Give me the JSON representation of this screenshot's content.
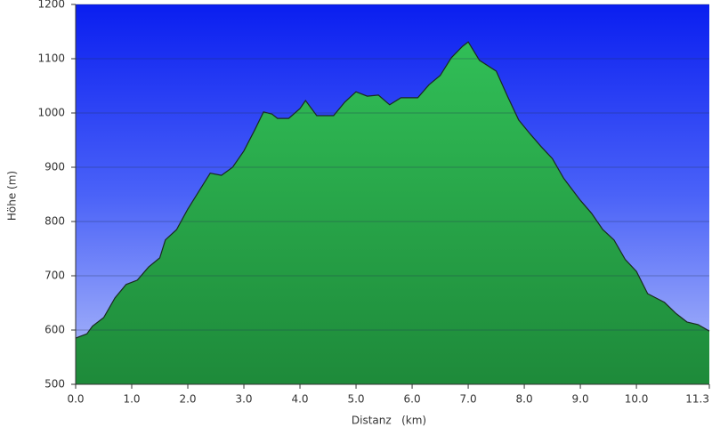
{
  "chart_data": {
    "type": "area",
    "xlabel": "Distanz   (km)",
    "ylabel": "Höhe (m)",
    "x": [
      0,
      0.2,
      0.3,
      0.5,
      0.7,
      0.9,
      1.1,
      1.3,
      1.5,
      1.6,
      1.8,
      2.0,
      2.2,
      2.4,
      2.6,
      2.8,
      3.0,
      3.2,
      3.35,
      3.5,
      3.6,
      3.8,
      4.0,
      4.1,
      4.3,
      4.6,
      4.8,
      5.0,
      5.2,
      5.4,
      5.6,
      5.8,
      6.1,
      6.3,
      6.5,
      6.7,
      6.9,
      7.0,
      7.2,
      7.5,
      7.7,
      7.9,
      8.1,
      8.3,
      8.5,
      8.7,
      9.0,
      9.2,
      9.4,
      9.6,
      9.8,
      10.0,
      10.2,
      10.5,
      10.7,
      10.9,
      11.1,
      11.3
    ],
    "values": [
      585,
      593,
      607,
      623,
      659,
      684,
      692,
      716,
      733,
      766,
      785,
      823,
      856,
      889,
      885,
      900,
      930,
      970,
      1002,
      998,
      990,
      990,
      1008,
      1023,
      995,
      995,
      1020,
      1039,
      1031,
      1033,
      1015,
      1028,
      1028,
      1052,
      1069,
      1102,
      1123,
      1131,
      1097,
      1077,
      1031,
      987,
      962,
      938,
      916,
      880,
      839,
      815,
      785,
      766,
      730,
      708,
      667,
      651,
      631,
      615,
      610,
      598
    ],
    "color": "#22aa44",
    "xlim": [
      0,
      11.3
    ],
    "ylim": [
      500,
      1200
    ],
    "xticks": [
      {
        "value": 0,
        "label": "0.0"
      },
      {
        "value": 1,
        "label": "1.0"
      },
      {
        "value": 2,
        "label": "2.0"
      },
      {
        "value": 3,
        "label": "3.0"
      },
      {
        "value": 4,
        "label": "4.0"
      },
      {
        "value": 5,
        "label": "5.0"
      },
      {
        "value": 6,
        "label": "6.0"
      },
      {
        "value": 7,
        "label": "7.0"
      },
      {
        "value": 8,
        "label": "8.0"
      },
      {
        "value": 9,
        "label": "9.0"
      },
      {
        "value": 10,
        "label": "10.0"
      },
      11.3
    ],
    "yticks": [
      500,
      600,
      700,
      800,
      900,
      1000,
      1100,
      1200
    ],
    "grid": true
  }
}
